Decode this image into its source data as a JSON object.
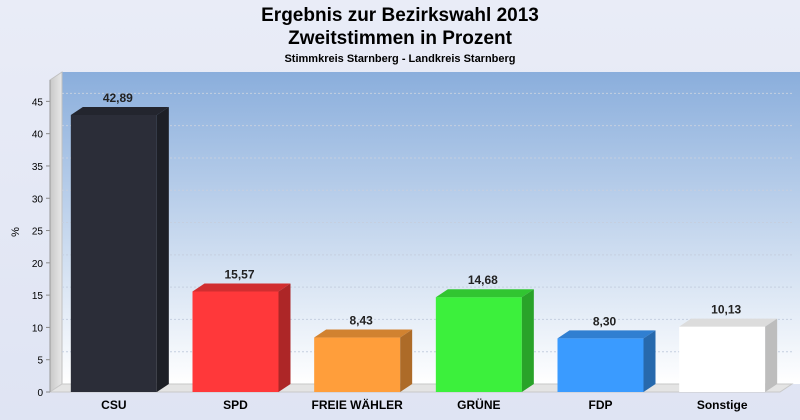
{
  "chart_data": {
    "type": "bar",
    "title": "Ergebnis zur Bezirkswahl 2013",
    "title_line2": "Zweitstimmen in Prozent",
    "subtitle": "Stimmkreis Starnberg - Landkreis Starnberg",
    "ylabel": "%",
    "xlabel": "",
    "ylim": [
      0,
      48
    ],
    "yticks": [
      0,
      5,
      10,
      15,
      20,
      25,
      30,
      35,
      40,
      45
    ],
    "grid": true,
    "categories": [
      "CSU",
      "SPD",
      "FREIE WÄHLER",
      "GRÜNE",
      "FDP",
      "Sonstige"
    ],
    "values": [
      42.89,
      15.57,
      8.43,
      14.68,
      8.3,
      10.13
    ],
    "value_labels": [
      "42,89",
      "15,57",
      "8,43",
      "14,68",
      "8,30",
      "10,13"
    ],
    "colors": [
      "#2b2d38",
      "#ff383a",
      "#ff9e3b",
      "#3cf03c",
      "#3a9bff",
      "#ffffff"
    ]
  }
}
